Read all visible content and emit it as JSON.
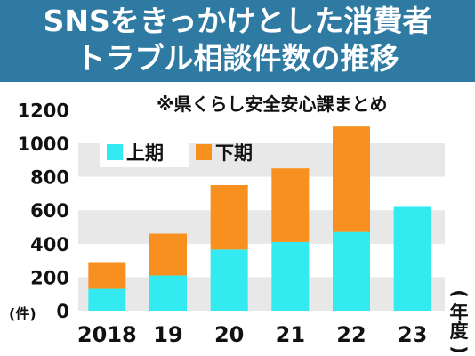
{
  "title_lines": [
    "SNSをきっかけとした消費者",
    "トラブル相談件数の推移"
  ],
  "source_note": "※県くらし安全安心課まとめ",
  "y_unit": "(件)",
  "x_unit": "(年度)",
  "colors": {
    "header": "#2f7aa3",
    "first_half": "#33eaf0",
    "second_half": "#f7901e",
    "band": "#e8e8e8"
  },
  "chart_data": {
    "type": "bar",
    "stacked": true,
    "categories": [
      "2018",
      "19",
      "20",
      "21",
      "22",
      "23"
    ],
    "series": [
      {
        "name": "上期",
        "values": [
          130,
          210,
          365,
          410,
          470,
          620
        ]
      },
      {
        "name": "下期",
        "values": [
          160,
          250,
          385,
          440,
          630,
          0
        ]
      }
    ],
    "yticks": [
      0,
      200,
      400,
      600,
      800,
      1000,
      1200
    ],
    "ylim": [
      0,
      1200
    ],
    "legend_placement": "top-left"
  }
}
